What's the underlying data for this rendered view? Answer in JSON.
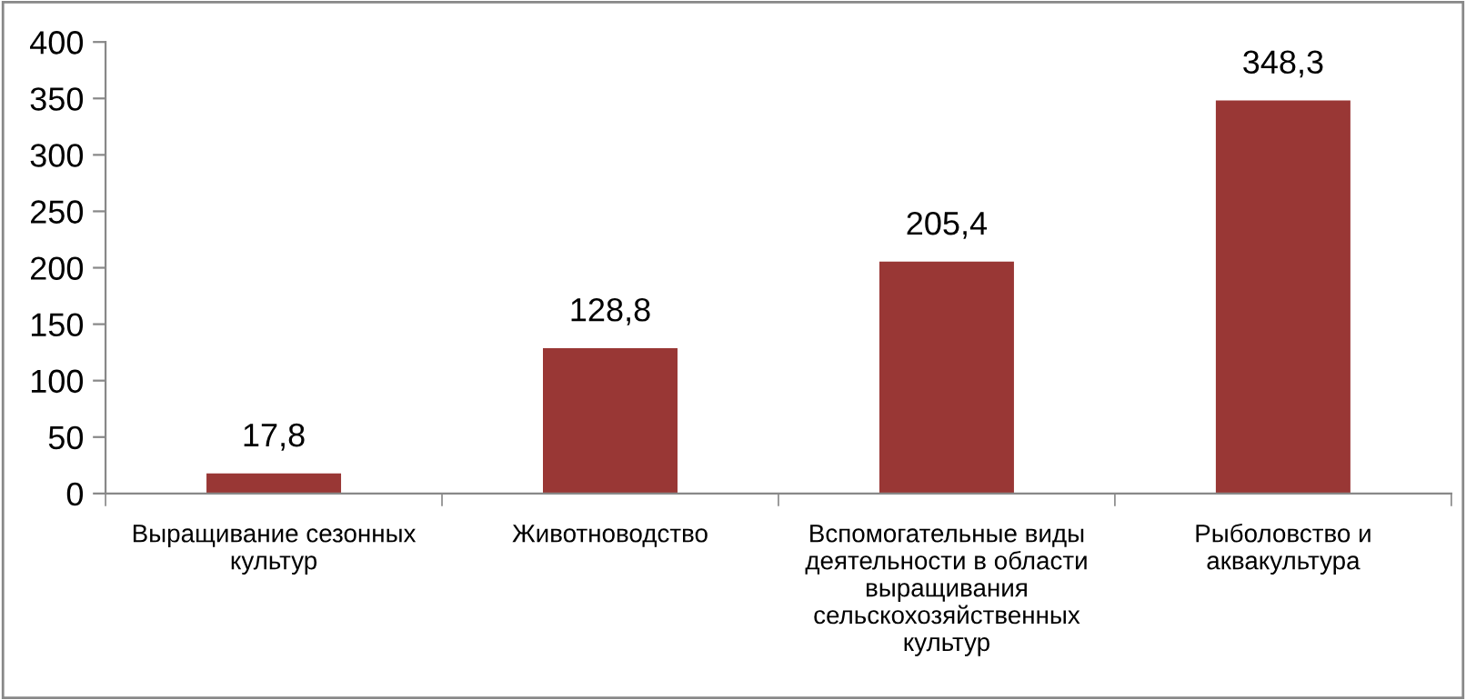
{
  "chart_data": {
    "type": "bar",
    "categories": [
      "Выращивание сезонных культур",
      "Животноводство",
      "Вспомогательные виды деятельности в области выращивания сельскохозяйственных культур",
      "Рыболовство и аквакультура"
    ],
    "values": [
      17.8,
      128.8,
      205.4,
      348.3
    ],
    "value_labels": [
      "17,8",
      "128,8",
      "205,4",
      "348,3"
    ],
    "color": "#993735",
    "ylim": [
      0,
      400
    ],
    "yticks": [
      0,
      50,
      100,
      150,
      200,
      250,
      300,
      350,
      400
    ],
    "grid": false,
    "legend": false
  }
}
